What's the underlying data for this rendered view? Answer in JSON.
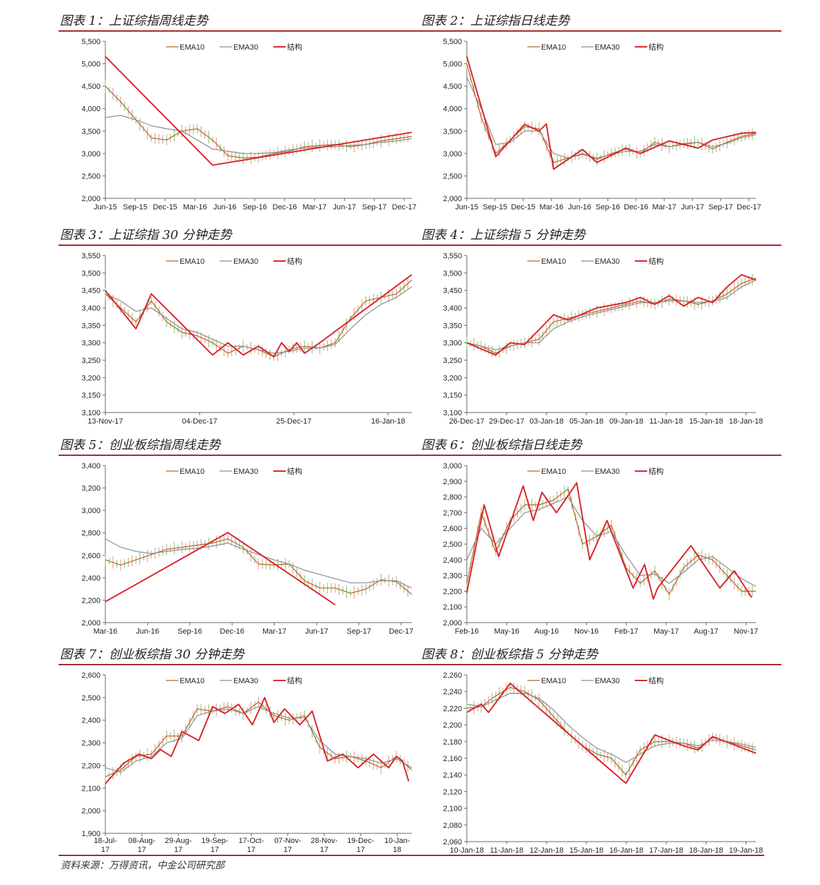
{
  "colors": {
    "ema10": "#b5651d",
    "ema30": "#8c8c8c",
    "structure": "#d9262b",
    "candle_up": "#e8a0a0",
    "candle_down": "#8fc98f",
    "rule": "#a8282d"
  },
  "legend": {
    "ema10": "EMA10",
    "ema30": "EMA30",
    "structure": "结构"
  },
  "source": "资料来源：万得资讯，中金公司研究部",
  "panels": [
    {
      "title": "图表 1：上证综指周线走势"
    },
    {
      "title": "图表 2：上证综指日线走势"
    },
    {
      "title": "图表 3：上证综指 30 分钟走势"
    },
    {
      "title": "图表 4：上证综指 5 分钟走势"
    },
    {
      "title": "图表 5：创业板综指周线走势"
    },
    {
      "title": "图表 6：创业板综指日线走势"
    },
    {
      "title": "图表 7：创业板综指 30 分钟走势"
    },
    {
      "title": "图表 8：创业板综指 5 分钟走势"
    }
  ],
  "chart_data": [
    {
      "type": "line",
      "ylim": [
        2000,
        5500
      ],
      "yticks": [
        "2,000",
        "2,500",
        "3,000",
        "3,500",
        "4,000",
        "4,500",
        "5,000",
        "5,500"
      ],
      "xticks": [
        "Jun-15",
        "Sep-15",
        "Dec-15",
        "Mar-16",
        "Jun-16",
        "Sep-16",
        "Dec-16",
        "Mar-17",
        "Jun-17",
        "Sep-17",
        "Dec-17"
      ],
      "x": [
        0,
        1,
        2,
        3,
        4,
        5,
        6,
        7,
        8,
        9,
        10,
        11,
        12,
        13,
        14,
        15,
        16,
        17,
        18,
        19,
        20
      ],
      "series": [
        {
          "name": "EMA10",
          "values": [
            4500,
            4150,
            3750,
            3350,
            3300,
            3500,
            3550,
            3300,
            2950,
            2900,
            2920,
            3000,
            3050,
            3150,
            3180,
            3200,
            3150,
            3200,
            3280,
            3330,
            3380
          ]
        },
        {
          "name": "EMA30",
          "values": [
            3800,
            3850,
            3750,
            3620,
            3550,
            3500,
            3300,
            3100,
            3050,
            3000,
            3000,
            3020,
            3080,
            3120,
            3150,
            3150,
            3180,
            3200,
            3250,
            3280,
            3330
          ]
        },
        {
          "name": "结构",
          "x": [
            0,
            7,
            20
          ],
          "values": [
            5160,
            2740,
            3470
          ]
        }
      ]
    },
    {
      "type": "line",
      "ylim": [
        2000,
        5500
      ],
      "yticks": [
        "2,000",
        "2,500",
        "3,000",
        "3,500",
        "4,000",
        "4,500",
        "5,000",
        "5,500"
      ],
      "xticks": [
        "Jun-15",
        "Sep-15",
        "Dec-15",
        "Mar-16",
        "Jun-16",
        "Sep-16",
        "Dec-16",
        "Mar-17",
        "Jun-17",
        "Sep-17",
        "Dec-17"
      ],
      "x": [
        0,
        1,
        2,
        3,
        4,
        5,
        6,
        7,
        8,
        9,
        10,
        11,
        12,
        13,
        14,
        15,
        16,
        17,
        18,
        19,
        20
      ],
      "series": [
        {
          "name": "EMA10",
          "values": [
            5000,
            3800,
            3000,
            3300,
            3600,
            3550,
            2800,
            2900,
            3000,
            2870,
            3000,
            3100,
            3000,
            3250,
            3150,
            3220,
            3250,
            3100,
            3250,
            3380,
            3450
          ]
        },
        {
          "name": "EMA30",
          "values": [
            4700,
            4000,
            3200,
            3250,
            3500,
            3500,
            3000,
            2900,
            2980,
            2900,
            2980,
            3050,
            3050,
            3200,
            3150,
            3200,
            3250,
            3150,
            3230,
            3350,
            3420
          ]
        },
        {
          "name": "结构",
          "x": [
            0,
            2,
            4,
            5,
            5.5,
            6,
            8,
            9,
            11,
            12,
            14,
            16,
            17,
            19,
            20
          ],
          "values": [
            5160,
            2930,
            3650,
            3500,
            3660,
            2650,
            3090,
            2800,
            3120,
            3000,
            3280,
            3120,
            3300,
            3450,
            3470
          ]
        }
      ]
    },
    {
      "type": "line",
      "ylim": [
        3100,
        3550
      ],
      "yticks": [
        "3,100",
        "3,150",
        "3,200",
        "3,250",
        "3,300",
        "3,350",
        "3,400",
        "3,450",
        "3,500",
        "3,550"
      ],
      "xticks": [
        "13-Nov-17",
        "04-Dec-17",
        "25-Dec-17",
        "16-Jan-18"
      ],
      "x": [
        0,
        1,
        2,
        3,
        4,
        5,
        6,
        7,
        8,
        9,
        10,
        11,
        12,
        13,
        14,
        15,
        16,
        17,
        18,
        19,
        20
      ],
      "series": [
        {
          "name": "EMA10",
          "values": [
            3440,
            3400,
            3360,
            3420,
            3360,
            3330,
            3320,
            3300,
            3270,
            3290,
            3280,
            3260,
            3280,
            3290,
            3285,
            3300,
            3370,
            3420,
            3430,
            3440,
            3480
          ]
        },
        {
          "name": "EMA30",
          "values": [
            3440,
            3420,
            3390,
            3400,
            3370,
            3340,
            3330,
            3310,
            3290,
            3290,
            3280,
            3270,
            3275,
            3285,
            3285,
            3295,
            3340,
            3380,
            3410,
            3430,
            3460
          ]
        },
        {
          "name": "结构",
          "x": [
            0,
            2,
            3,
            7,
            8,
            9,
            10,
            11,
            11.5,
            12,
            12.5,
            13,
            14,
            20
          ],
          "values": [
            3450,
            3340,
            3440,
            3265,
            3300,
            3265,
            3290,
            3260,
            3300,
            3275,
            3300,
            3270,
            3300,
            3495
          ]
        }
      ]
    },
    {
      "type": "line",
      "ylim": [
        3100,
        3550
      ],
      "yticks": [
        "3,100",
        "3,150",
        "3,200",
        "3,250",
        "3,300",
        "3,350",
        "3,400",
        "3,450",
        "3,500",
        "3,550"
      ],
      "xticks": [
        "26-Dec-17",
        "29-Dec-17",
        "03-Jan-18",
        "05-Jan-18",
        "09-Jan-18",
        "11-Jan-18",
        "15-Jan-18",
        "18-Jan-18"
      ],
      "x": [
        0,
        1,
        2,
        3,
        4,
        5,
        6,
        7,
        8,
        9,
        10,
        11,
        12,
        13,
        14,
        15,
        16,
        17,
        18,
        19,
        20
      ],
      "series": [
        {
          "name": "EMA10",
          "values": [
            3300,
            3290,
            3270,
            3290,
            3300,
            3310,
            3360,
            3370,
            3380,
            3390,
            3400,
            3410,
            3420,
            3410,
            3425,
            3420,
            3410,
            3420,
            3440,
            3470,
            3485
          ]
        },
        {
          "name": "EMA30",
          "values": [
            3300,
            3290,
            3280,
            3290,
            3300,
            3300,
            3340,
            3360,
            3375,
            3385,
            3395,
            3405,
            3415,
            3415,
            3420,
            3420,
            3415,
            3418,
            3430,
            3460,
            3480
          ]
        },
        {
          "name": "结构",
          "x": [
            0,
            2,
            3,
            4,
            6,
            7,
            9,
            11,
            12,
            13,
            14,
            15,
            16,
            17,
            18,
            19,
            20
          ],
          "values": [
            3300,
            3265,
            3300,
            3295,
            3380,
            3365,
            3400,
            3415,
            3430,
            3410,
            3435,
            3405,
            3430,
            3415,
            3460,
            3495,
            3480
          ]
        }
      ]
    },
    {
      "type": "line",
      "ylim": [
        2000,
        3500
      ],
      "yticks": [
        "2,000",
        "2,200",
        "2,400",
        "2,600",
        "2,800",
        "3,000",
        "3,200",
        "3,400"
      ],
      "xticks": [
        "Mar-16",
        "Jun-16",
        "Sep-16",
        "Dec-16",
        "Mar-17",
        "Jun-17",
        "Sep-17",
        "Dec-17"
      ],
      "x": [
        0,
        1,
        2,
        3,
        4,
        5,
        6,
        7,
        8,
        9,
        10,
        11,
        12,
        13,
        14,
        15,
        16,
        17,
        18,
        19,
        20
      ],
      "series": [
        {
          "name": "EMA10",
          "values": [
            2600,
            2550,
            2600,
            2650,
            2700,
            2720,
            2740,
            2760,
            2800,
            2720,
            2560,
            2550,
            2560,
            2400,
            2330,
            2330,
            2280,
            2320,
            2410,
            2390,
            2270
          ]
        },
        {
          "name": "EMA30",
          "values": [
            2800,
            2720,
            2680,
            2660,
            2680,
            2700,
            2710,
            2730,
            2760,
            2700,
            2650,
            2600,
            2560,
            2500,
            2460,
            2420,
            2380,
            2380,
            2400,
            2400,
            2330
          ]
        },
        {
          "name": "结构",
          "x": [
            0,
            8,
            15
          ],
          "values": [
            2200,
            2860,
            2170
          ]
        }
      ]
    },
    {
      "type": "line",
      "ylim": [
        2000,
        3000
      ],
      "yticks": [
        "2,000",
        "2,100",
        "2,200",
        "2,300",
        "2,400",
        "2,500",
        "2,600",
        "2,700",
        "2,800",
        "2,900",
        "3,000"
      ],
      "xticks": [
        "Feb-16",
        "May-16",
        "Aug-16",
        "Nov-16",
        "Feb-17",
        "May-17",
        "Aug-17",
        "Nov-17"
      ],
      "x": [
        0,
        1,
        2,
        3,
        4,
        5,
        6,
        7,
        8,
        9,
        10,
        11,
        12,
        13,
        14,
        15,
        16,
        17,
        18,
        19,
        20
      ],
      "series": [
        {
          "name": "EMA10",
          "values": [
            2250,
            2700,
            2450,
            2650,
            2750,
            2750,
            2780,
            2850,
            2500,
            2550,
            2620,
            2350,
            2250,
            2330,
            2180,
            2350,
            2430,
            2400,
            2300,
            2200,
            2200
          ]
        },
        {
          "name": "EMA30",
          "values": [
            2400,
            2600,
            2500,
            2600,
            2700,
            2720,
            2760,
            2800,
            2650,
            2550,
            2580,
            2430,
            2300,
            2310,
            2250,
            2320,
            2400,
            2420,
            2350,
            2280,
            2230
          ]
        },
        {
          "name": "结构",
          "x": [
            0,
            1.2,
            2.2,
            3.9,
            4.6,
            5.2,
            6.2,
            7.6,
            8.5,
            9.7,
            11.5,
            12.3,
            12.9,
            13.2,
            15.5,
            17.5,
            18.5,
            19.7
          ],
          "values": [
            2190,
            2750,
            2420,
            2870,
            2650,
            2830,
            2700,
            2890,
            2400,
            2650,
            2220,
            2370,
            2150,
            2220,
            2490,
            2220,
            2330,
            2160
          ]
        }
      ]
    },
    {
      "type": "line",
      "ylim": [
        1900,
        2600
      ],
      "yticks": [
        "1,900",
        "2,000",
        "2,100",
        "2,200",
        "2,300",
        "2,400",
        "2,500",
        "2,600"
      ],
      "xticks": [
        "18-Jul-17",
        "08-Aug-17",
        "29-Aug-17",
        "19-Sep-17",
        "17-Oct-17",
        "07-Nov-17",
        "28-Nov-17",
        "19-Dec-17",
        "10-Jan-18"
      ],
      "x": [
        0,
        1,
        2,
        3,
        4,
        5,
        6,
        7,
        8,
        9,
        10,
        11,
        12,
        13,
        14,
        15,
        16,
        17,
        18,
        19,
        20
      ],
      "series": [
        {
          "name": "EMA10",
          "values": [
            2150,
            2180,
            2240,
            2250,
            2330,
            2330,
            2450,
            2440,
            2460,
            2430,
            2480,
            2420,
            2400,
            2420,
            2280,
            2230,
            2240,
            2220,
            2190,
            2240,
            2180
          ]
        },
        {
          "name": "EMA30",
          "values": [
            2190,
            2170,
            2220,
            2240,
            2300,
            2320,
            2420,
            2440,
            2450,
            2430,
            2460,
            2430,
            2410,
            2410,
            2310,
            2250,
            2240,
            2230,
            2210,
            2230,
            2190
          ]
        },
        {
          "name": "结构",
          "x": [
            0,
            1.2,
            2.2,
            3,
            3.6,
            4.3,
            5,
            6.1,
            7,
            7.8,
            8.7,
            9.6,
            10.4,
            11,
            11.7,
            12.7,
            13.5,
            14.5,
            15.5,
            16.5,
            17.5,
            18.5,
            19,
            19.4,
            19.8
          ],
          "values": [
            2120,
            2210,
            2250,
            2230,
            2270,
            2240,
            2350,
            2310,
            2460,
            2430,
            2470,
            2380,
            2500,
            2390,
            2450,
            2380,
            2440,
            2220,
            2250,
            2190,
            2250,
            2190,
            2240,
            2220,
            2130
          ]
        }
      ]
    },
    {
      "type": "line",
      "ylim": [
        2060,
        2260
      ],
      "yticks": [
        "2,060",
        "2,080",
        "2,100",
        "2,120",
        "2,140",
        "2,160",
        "2,180",
        "2,200",
        "2,220",
        "2,240",
        "2,260"
      ],
      "xticks": [
        "10-Jan-18",
        "11-Jan-18",
        "12-Jan-18",
        "15-Jan-18",
        "16-Jan-18",
        "17-Jan-18",
        "18-Jan-18",
        "19-Jan-18"
      ],
      "x": [
        0,
        1,
        2,
        3,
        4,
        5,
        6,
        7,
        8,
        9,
        10,
        11,
        12,
        13,
        14,
        15,
        16,
        17,
        18,
        19,
        20
      ],
      "series": [
        {
          "name": "EMA10",
          "values": [
            2220,
            2222,
            2235,
            2245,
            2240,
            2230,
            2210,
            2190,
            2175,
            2165,
            2160,
            2140,
            2170,
            2180,
            2180,
            2178,
            2172,
            2185,
            2180,
            2175,
            2170
          ]
        },
        {
          "name": "EMA30",
          "values": [
            2225,
            2222,
            2230,
            2238,
            2238,
            2232,
            2218,
            2200,
            2185,
            2172,
            2165,
            2155,
            2165,
            2175,
            2178,
            2178,
            2175,
            2182,
            2180,
            2177,
            2173
          ]
        },
        {
          "name": "结构",
          "x": [
            0,
            1,
            1.5,
            3,
            11,
            13,
            15,
            16,
            17,
            20
          ],
          "values": [
            2215,
            2225,
            2215,
            2250,
            2130,
            2188,
            2175,
            2170,
            2186,
            2166
          ]
        }
      ]
    }
  ]
}
